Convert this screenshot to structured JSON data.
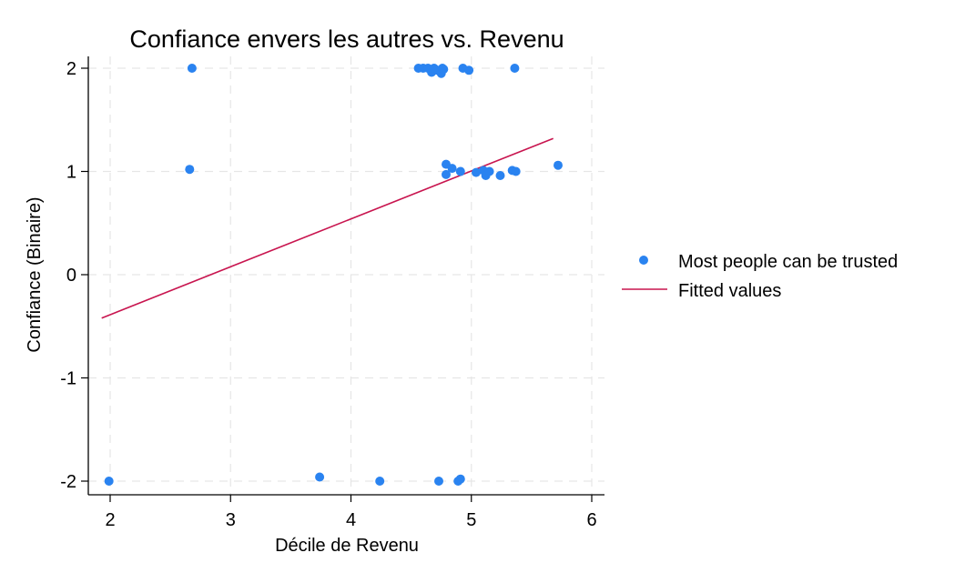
{
  "chart_data": {
    "type": "scatter",
    "title": "Confiance envers les autres vs. Revenu",
    "xlabel": "Décile de Revenu",
    "ylabel": "Confiance (Binaire)",
    "xlim": [
      1.83,
      6.1
    ],
    "ylim": [
      -2.15,
      2.1
    ],
    "xticks": [
      "2",
      "3",
      "4",
      "5",
      "6"
    ],
    "yticks": [
      "2",
      "1",
      "0",
      "-1",
      "-2"
    ],
    "grid": true,
    "legend_position": "right",
    "series": [
      {
        "name": "Most people can be trusted",
        "kind": "points",
        "color": "#2a83f0",
        "points": [
          [
            2.68,
            2.0
          ],
          [
            4.56,
            2.0
          ],
          [
            4.6,
            2.0
          ],
          [
            4.64,
            2.0
          ],
          [
            4.67,
            1.96
          ],
          [
            4.69,
            2.0
          ],
          [
            4.72,
            1.98
          ],
          [
            4.75,
            1.95
          ],
          [
            4.76,
            2.0
          ],
          [
            4.77,
            1.99
          ],
          [
            4.93,
            2.0
          ],
          [
            4.98,
            1.98
          ],
          [
            5.36,
            2.0
          ],
          [
            2.66,
            1.02
          ],
          [
            4.79,
            1.07
          ],
          [
            4.79,
            0.97
          ],
          [
            4.84,
            1.03
          ],
          [
            4.91,
            1.0
          ],
          [
            5.04,
            0.99
          ],
          [
            5.1,
            1.01
          ],
          [
            5.12,
            0.96
          ],
          [
            5.15,
            1.0
          ],
          [
            5.24,
            0.96
          ],
          [
            5.34,
            1.01
          ],
          [
            5.37,
            1.0
          ],
          [
            5.72,
            1.06
          ],
          [
            1.99,
            -2.0
          ],
          [
            3.74,
            -1.96
          ],
          [
            4.24,
            -2.0
          ],
          [
            4.73,
            -2.0
          ],
          [
            4.89,
            -2.0
          ],
          [
            4.91,
            -1.98
          ]
        ]
      },
      {
        "name": "Fitted values",
        "kind": "line",
        "color": "#c8154f",
        "points": [
          [
            1.93,
            -0.42
          ],
          [
            5.68,
            1.32
          ]
        ]
      }
    ]
  }
}
